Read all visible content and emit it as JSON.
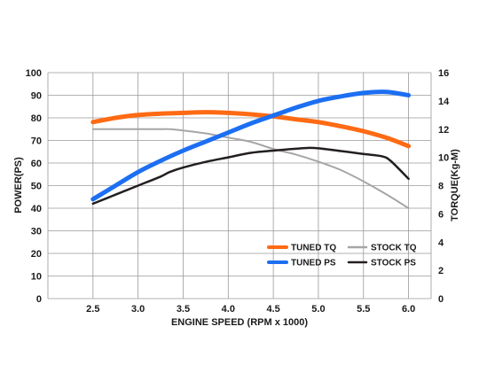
{
  "chart_data": {
    "type": "line",
    "xlabel": "ENGINE SPEED (RPM x 1000)",
    "ylabel_left": "POWER(PS)",
    "ylabel_right": "TORQUE(Kg-M)",
    "xlim": [
      2.0,
      6.25
    ],
    "ylim_left": [
      0,
      100
    ],
    "ylim_right": [
      0,
      16
    ],
    "x_ticks": [
      "2.5",
      "3.0",
      "3.5",
      "4.0",
      "4.5",
      "5.0",
      "5.5",
      "6.0"
    ],
    "y_left_ticks": [
      "0",
      "10",
      "20",
      "30",
      "40",
      "50",
      "60",
      "70",
      "80",
      "90",
      "100"
    ],
    "y_right_ticks": [
      "0",
      "2",
      "4",
      "6",
      "8",
      "10",
      "12",
      "14",
      "16"
    ],
    "grid": true,
    "legend_position": "lower-right",
    "series": [
      {
        "name": "TUNED TQ",
        "axis": "right",
        "color": "#ff6a13",
        "width": 5,
        "x": [
          2.5,
          2.75,
          3.0,
          3.25,
          3.5,
          3.75,
          4.0,
          4.25,
          4.5,
          4.75,
          5.0,
          5.25,
          5.5,
          5.75,
          6.0
        ],
        "values": [
          12.5,
          12.8,
          13.0,
          13.1,
          13.15,
          13.2,
          13.15,
          13.05,
          12.9,
          12.7,
          12.5,
          12.2,
          11.85,
          11.4,
          10.8
        ]
      },
      {
        "name": "TUNED PS",
        "axis": "left",
        "color": "#1c6ff2",
        "width": 5,
        "x": [
          2.5,
          2.75,
          3.0,
          3.25,
          3.5,
          3.75,
          4.0,
          4.25,
          4.5,
          4.75,
          5.0,
          5.25,
          5.5,
          5.75,
          6.0
        ],
        "values": [
          44,
          50,
          56,
          61,
          65.5,
          69.5,
          73.5,
          77.5,
          81,
          84.5,
          87.5,
          89.5,
          91,
          91.5,
          90
        ]
      },
      {
        "name": "STOCK TQ",
        "axis": "right",
        "color": "#a6a6a6",
        "width": 2,
        "x": [
          2.5,
          2.75,
          3.0,
          3.25,
          3.35,
          3.5,
          3.75,
          4.0,
          4.25,
          4.5,
          4.75,
          5.0,
          5.25,
          5.5,
          5.75,
          6.0
        ],
        "values": [
          12.0,
          12.0,
          12.0,
          12.0,
          12.0,
          11.9,
          11.7,
          11.4,
          11.1,
          10.6,
          10.2,
          9.7,
          9.1,
          8.3,
          7.4,
          6.4
        ]
      },
      {
        "name": "STOCK PS",
        "axis": "left",
        "color": "#231f20",
        "width": 2.5,
        "x": [
          2.5,
          2.75,
          3.0,
          3.25,
          3.35,
          3.5,
          3.75,
          4.0,
          4.25,
          4.5,
          4.75,
          4.9,
          5.0,
          5.25,
          5.5,
          5.7,
          5.8,
          6.0
        ],
        "values": [
          42,
          46,
          50,
          54,
          56,
          58,
          60.5,
          62.5,
          64.5,
          65.5,
          66.3,
          66.7,
          66.5,
          65.3,
          64,
          63,
          61,
          53
        ]
      }
    ]
  }
}
